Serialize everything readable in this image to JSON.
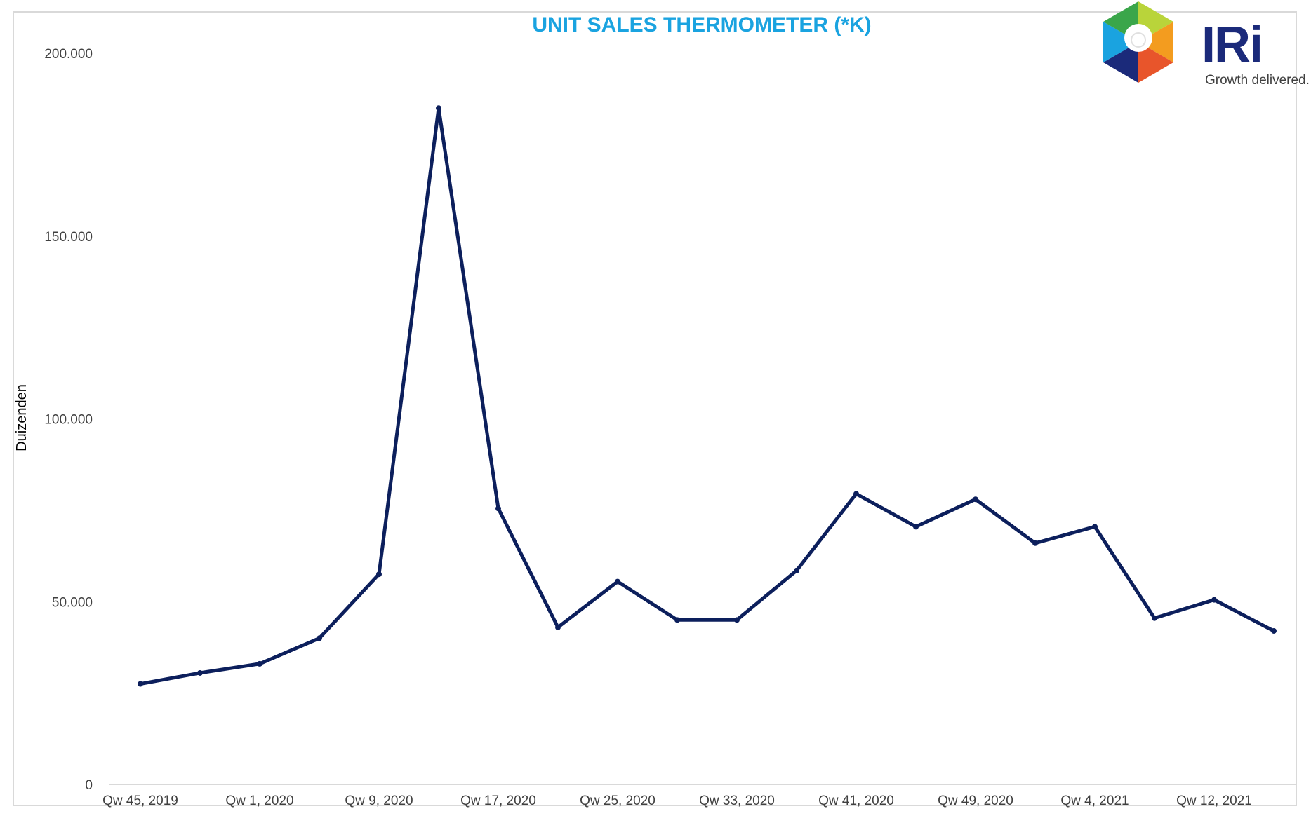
{
  "chart_data": {
    "type": "line",
    "title": "UNIT SALES THERMOMETER (*K)",
    "ylabel": "Duizenden",
    "xlabel": "",
    "ylim": [
      0,
      200000
    ],
    "yticks": [
      0,
      50000,
      100000,
      150000,
      200000
    ],
    "ytick_labels": [
      "0",
      "50.000",
      "100.000",
      "150.000",
      "200.000"
    ],
    "grid": false,
    "legend": "none",
    "x_tick_labels": [
      "Qw 45, 2019",
      "Qw 1, 2020",
      "Qw 9, 2020",
      "Qw 17, 2020",
      "Qw 25, 2020",
      "Qw 33, 2020",
      "Qw 41, 2020",
      "Qw 49, 2020",
      "Qw 4, 2021",
      "Qw 12, 2021"
    ],
    "categories": [
      "Qw 45, 2019",
      "Qw 49, 2019",
      "Qw 1, 2020",
      "Qw 5, 2020",
      "Qw 9, 2020",
      "Qw 13, 2020",
      "Qw 17, 2020",
      "Qw 21, 2020",
      "Qw 25, 2020",
      "Qw 29, 2020",
      "Qw 33, 2020",
      "Qw 37, 2020",
      "Qw 41, 2020",
      "Qw 45, 2020",
      "Qw 49, 2020",
      "Qw 53, 2020",
      "Qw 4, 2021",
      "Qw 8, 2021",
      "Qw 12, 2021",
      "Qw 16, 2021"
    ],
    "series": [
      {
        "color": "#0c1f5c",
        "values": [
          27500,
          30500,
          33000,
          40000,
          57500,
          185000,
          75500,
          43000,
          55500,
          45000,
          45000,
          58500,
          79500,
          70500,
          78000,
          66000,
          70500,
          45500,
          50500,
          42000
        ]
      }
    ]
  },
  "colors": {
    "title": "#1aa3e0",
    "line": "#0c1f5c",
    "axis": "#d9d9d9",
    "brand": "#1b2a7a"
  },
  "logo": {
    "name": "IRi",
    "tagline": "Growth delivered."
  }
}
